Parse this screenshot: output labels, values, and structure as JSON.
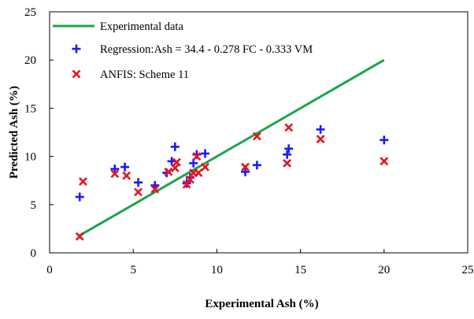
{
  "chart_data": {
    "type": "scatter",
    "xlabel": "Experimental Ash (%)",
    "ylabel": "Predicted Ash (%)",
    "xlim": [
      0,
      25
    ],
    "ylim": [
      0,
      25
    ],
    "xticks": [
      0,
      5,
      10,
      15,
      20,
      25
    ],
    "yticks": [
      0,
      5,
      10,
      15,
      20,
      25
    ],
    "grid": false,
    "legend_position": "top-left",
    "series": [
      {
        "name": "Experimental data",
        "type": "line",
        "color": "#1aa64a",
        "x": [
          1.8,
          20.0
        ],
        "y": [
          1.8,
          20.0
        ]
      },
      {
        "name": "Regression:Ash = 34.4 - 0.278 FC - 0.333 VM",
        "type": "scatter",
        "marker": "plus",
        "color": "#1a1aff",
        "x": [
          1.8,
          3.9,
          4.5,
          5.3,
          6.3,
          7.0,
          7.3,
          7.5,
          8.2,
          8.4,
          8.6,
          8.8,
          9.3,
          11.7,
          12.4,
          14.2,
          14.3,
          16.2,
          20.0
        ],
        "y": [
          5.8,
          8.7,
          8.9,
          7.3,
          7.0,
          8.3,
          9.5,
          11.0,
          7.2,
          7.8,
          9.3,
          10.2,
          10.3,
          8.4,
          9.1,
          10.2,
          10.8,
          12.8,
          11.7
        ]
      },
      {
        "name": "ANFIS: Scheme 11",
        "type": "scatter",
        "marker": "x",
        "color": "#e8121c",
        "x": [
          1.8,
          2.0,
          3.9,
          4.6,
          5.3,
          6.3,
          7.1,
          7.5,
          7.6,
          8.2,
          8.4,
          8.6,
          8.8,
          8.9,
          9.3,
          11.7,
          12.4,
          14.2,
          14.3,
          16.2,
          20.0
        ],
        "y": [
          1.7,
          7.4,
          8.2,
          8.0,
          6.3,
          6.6,
          8.4,
          8.8,
          9.4,
          7.1,
          7.6,
          8.3,
          10.0,
          8.3,
          8.9,
          8.9,
          12.1,
          9.3,
          13.0,
          11.8,
          9.5
        ]
      }
    ]
  }
}
